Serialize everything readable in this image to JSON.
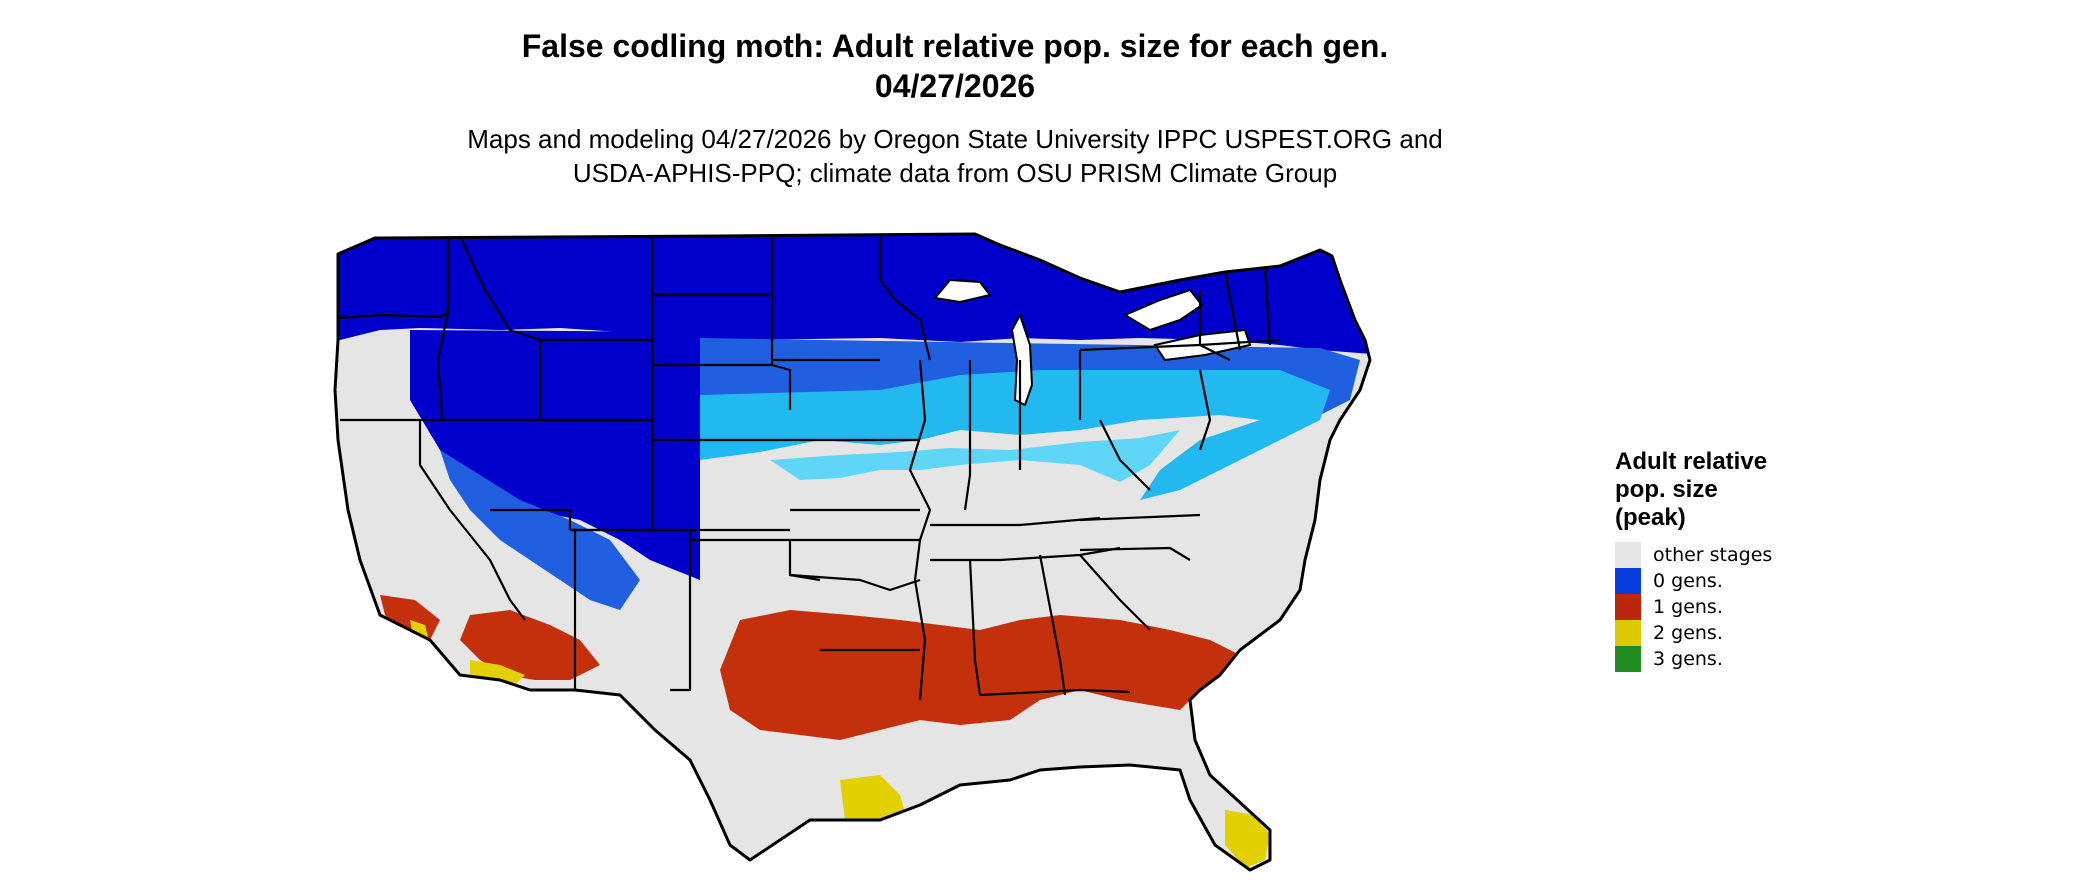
{
  "title_line1": "False codling moth: Adult relative pop. size for each gen.",
  "title_line2": "04/27/2026",
  "subtitle_line1": "Maps and modeling 04/27/2026 by Oregon State University IPPC USPEST.ORG and",
  "subtitle_line2": "USDA-APHIS-PPQ; climate data from OSU PRISM Climate Group",
  "legend": {
    "title_line1": "Adult relative",
    "title_line2": "pop. size",
    "title_line3": "(peak)",
    "items": [
      {
        "label": "other stages",
        "color": "#e5e5e5"
      },
      {
        "label": "0 gens.",
        "color": "#0a3de0"
      },
      {
        "label": "1 gens.",
        "color": "#b8260c"
      },
      {
        "label": "2 gens.",
        "color": "#ddc900"
      },
      {
        "label": "3 gens.",
        "color": "#228b22"
      }
    ]
  },
  "map_colors": {
    "deep_blue": "#0000cc",
    "mid_blue": "#1f5fe0",
    "light_blue": "#22b8f0",
    "cyan": "#5fd5f7",
    "gray": "#e5e5e5",
    "red": "#c4300c",
    "yellow": "#e2d000",
    "border": "#000000"
  }
}
